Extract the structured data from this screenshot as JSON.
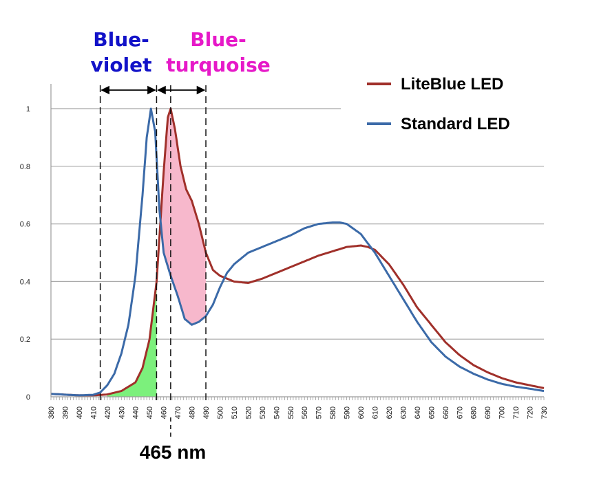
{
  "chart_data": {
    "type": "line",
    "title": "",
    "xlabel": "",
    "ylabel": "",
    "xlim": [
      380,
      730
    ],
    "ylim": [
      0,
      1
    ],
    "grid": true,
    "legend_position": "top-right",
    "y_ticks": [
      "0",
      "0.2",
      "0.4",
      "0.6",
      "0.8",
      "1"
    ],
    "x_ticks": [
      "380",
      "390",
      "400",
      "410",
      "420",
      "430",
      "440",
      "450",
      "460",
      "470",
      "480",
      "490",
      "500",
      "510",
      "520",
      "530",
      "540",
      "550",
      "560",
      "570",
      "580",
      "590",
      "600",
      "610",
      "620",
      "630",
      "640",
      "650",
      "660",
      "670",
      "680",
      "690",
      "700",
      "710",
      "720",
      "730"
    ],
    "series": [
      {
        "name": "LiteBlue LED",
        "color": "#a0302a",
        "points": [
          [
            380,
            0.01
          ],
          [
            400,
            0.005
          ],
          [
            410,
            0.005
          ],
          [
            420,
            0.008
          ],
          [
            430,
            0.02
          ],
          [
            440,
            0.05
          ],
          [
            445,
            0.1
          ],
          [
            450,
            0.2
          ],
          [
            455,
            0.4
          ],
          [
            460,
            0.78
          ],
          [
            463,
            0.97
          ],
          [
            465,
            1.0
          ],
          [
            468,
            0.93
          ],
          [
            472,
            0.8
          ],
          [
            476,
            0.72
          ],
          [
            480,
            0.68
          ],
          [
            485,
            0.6
          ],
          [
            490,
            0.5
          ],
          [
            495,
            0.44
          ],
          [
            500,
            0.42
          ],
          [
            510,
            0.4
          ],
          [
            520,
            0.395
          ],
          [
            530,
            0.41
          ],
          [
            540,
            0.43
          ],
          [
            550,
            0.45
          ],
          [
            560,
            0.47
          ],
          [
            570,
            0.49
          ],
          [
            580,
            0.505
          ],
          [
            590,
            0.52
          ],
          [
            600,
            0.525
          ],
          [
            605,
            0.52
          ],
          [
            610,
            0.51
          ],
          [
            620,
            0.46
          ],
          [
            630,
            0.39
          ],
          [
            640,
            0.31
          ],
          [
            650,
            0.25
          ],
          [
            660,
            0.19
          ],
          [
            670,
            0.145
          ],
          [
            680,
            0.11
          ],
          [
            690,
            0.085
          ],
          [
            700,
            0.065
          ],
          [
            710,
            0.05
          ],
          [
            720,
            0.04
          ],
          [
            730,
            0.03
          ]
        ]
      },
      {
        "name": "Standard LED",
        "color": "#3b6aa8",
        "points": [
          [
            380,
            0.01
          ],
          [
            400,
            0.005
          ],
          [
            410,
            0.007
          ],
          [
            415,
            0.015
          ],
          [
            420,
            0.04
          ],
          [
            425,
            0.08
          ],
          [
            430,
            0.15
          ],
          [
            435,
            0.25
          ],
          [
            440,
            0.42
          ],
          [
            445,
            0.7
          ],
          [
            448,
            0.9
          ],
          [
            451,
            1.0
          ],
          [
            454,
            0.92
          ],
          [
            457,
            0.65
          ],
          [
            460,
            0.5
          ],
          [
            465,
            0.42
          ],
          [
            470,
            0.35
          ],
          [
            475,
            0.27
          ],
          [
            480,
            0.25
          ],
          [
            485,
            0.26
          ],
          [
            490,
            0.28
          ],
          [
            495,
            0.32
          ],
          [
            500,
            0.38
          ],
          [
            505,
            0.43
          ],
          [
            510,
            0.46
          ],
          [
            520,
            0.5
          ],
          [
            530,
            0.52
          ],
          [
            540,
            0.54
          ],
          [
            550,
            0.56
          ],
          [
            560,
            0.585
          ],
          [
            570,
            0.6
          ],
          [
            580,
            0.605
          ],
          [
            585,
            0.605
          ],
          [
            590,
            0.6
          ],
          [
            600,
            0.565
          ],
          [
            610,
            0.5
          ],
          [
            620,
            0.42
          ],
          [
            630,
            0.34
          ],
          [
            640,
            0.26
          ],
          [
            650,
            0.19
          ],
          [
            660,
            0.14
          ],
          [
            670,
            0.105
          ],
          [
            680,
            0.08
          ],
          [
            690,
            0.06
          ],
          [
            700,
            0.045
          ],
          [
            710,
            0.035
          ],
          [
            720,
            0.028
          ],
          [
            730,
            0.02
          ]
        ]
      }
    ],
    "dashed_markers_nm": [
      415,
      455,
      465,
      490
    ],
    "marker_label": "465 nm",
    "bands": [
      {
        "label_line1": "Blue-",
        "label_line2": "violet",
        "color": "#1212c8",
        "range_nm": [
          415,
          455
        ]
      },
      {
        "label_line1": "Blue-",
        "label_line2": "turquoise",
        "color": "#e619c8",
        "range_nm": [
          455,
          490
        ]
      }
    ],
    "shaded_regions": [
      {
        "name": "green-fill",
        "color": "#7cf07c",
        "between": "liteblue-and-axis",
        "range_nm": [
          420,
          455
        ]
      },
      {
        "name": "pink-fill",
        "color": "#f7b8cc",
        "between": "liteblue-and-standard",
        "range_nm": [
          457,
          490
        ]
      }
    ]
  }
}
